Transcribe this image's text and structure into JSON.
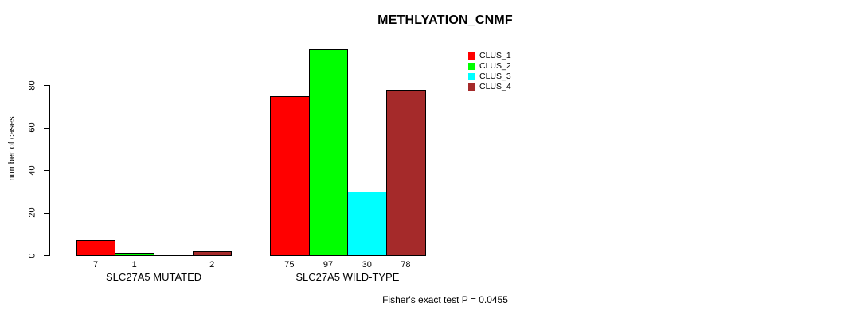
{
  "chart_data": {
    "type": "bar",
    "title": "METHLYATION_CNMF",
    "ylabel": "number of cases",
    "xlabel": "",
    "yticks": [
      0,
      20,
      40,
      60,
      80
    ],
    "ylim": [
      0,
      100
    ],
    "grid": false,
    "legend_position": "top-right-of-plot",
    "categories": [
      "SLC27A5 MUTATED",
      "SLC27A5 WILD-TYPE"
    ],
    "series": [
      {
        "name": "CLUS_1",
        "color": "#ff0000",
        "values": [
          7,
          75
        ]
      },
      {
        "name": "CLUS_2",
        "color": "#00ff00",
        "values": [
          1,
          97
        ]
      },
      {
        "name": "CLUS_3",
        "color": "#00ffff",
        "values": [
          0,
          30
        ]
      },
      {
        "name": "CLUS_4",
        "color": "#a52a2a",
        "values": [
          2,
          78
        ]
      }
    ],
    "bar_value_labels": [
      [
        "7",
        "1",
        "",
        "2"
      ],
      [
        "75",
        "97",
        "30",
        "78"
      ]
    ],
    "footnote": "Fisher's exact test P = 0.0455"
  }
}
